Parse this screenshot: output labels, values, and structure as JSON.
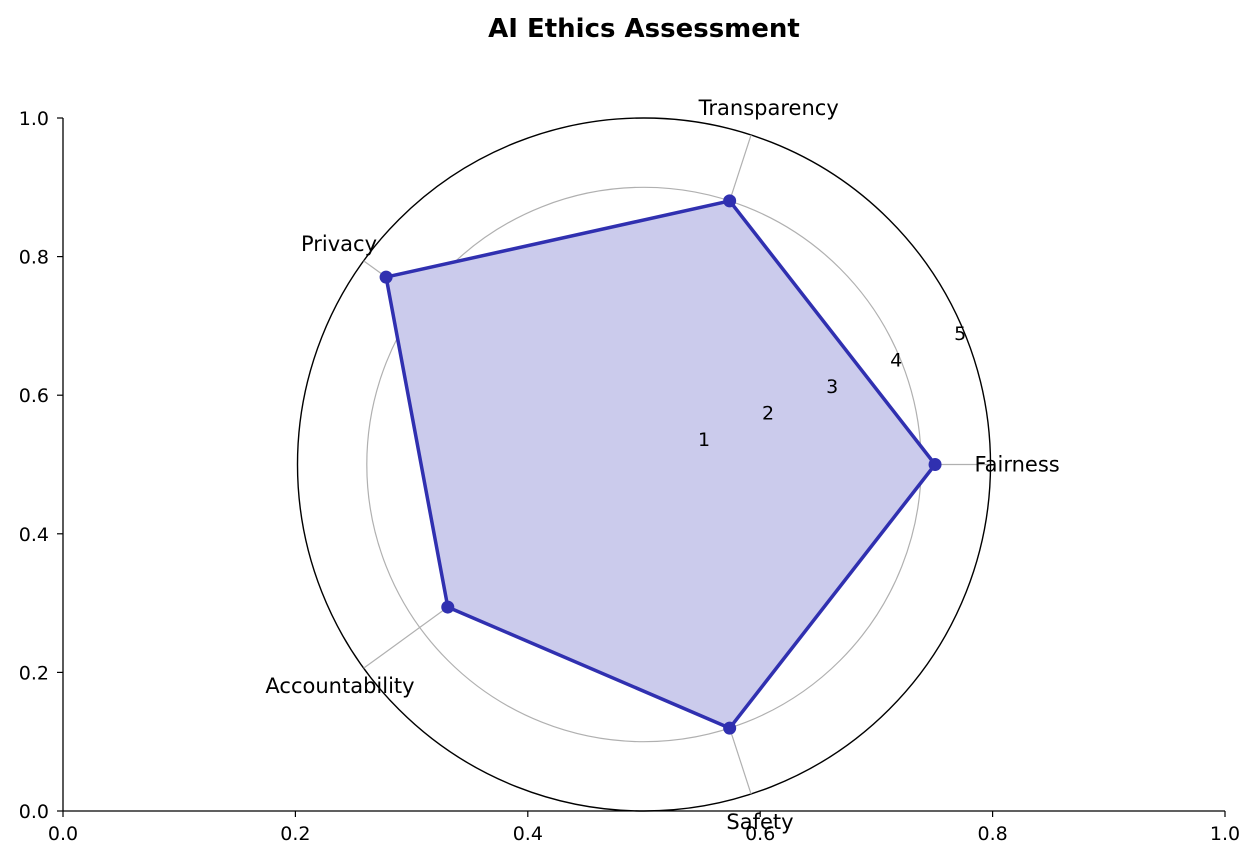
{
  "chart_data": {
    "type": "radar",
    "title": "AI Ethics Assessment",
    "categories": [
      "Fairness",
      "Transparency",
      "Privacy",
      "Accountability",
      "Safety"
    ],
    "series": [
      {
        "values": [
          4.2,
          4.0,
          4.6,
          3.5,
          4.0
        ]
      }
    ],
    "r_ticks": [
      "1",
      "2",
      "3",
      "4",
      "5"
    ],
    "r_range": [
      0,
      5
    ],
    "cartesian_axes": {
      "x_ticks": [
        "0.0",
        "0.2",
        "0.4",
        "0.6",
        "0.8",
        "1.0"
      ],
      "y_ticks": [
        "0.0",
        "0.2",
        "0.4",
        "0.6",
        "0.8",
        "1.0"
      ],
      "xlim": [
        0,
        1
      ],
      "ylim": [
        0,
        1
      ]
    },
    "grid": true,
    "colors": {
      "line": "#3030b0",
      "fill": "#cbcbec",
      "grid": "#b0b0b0",
      "axis": "#000000"
    }
  }
}
